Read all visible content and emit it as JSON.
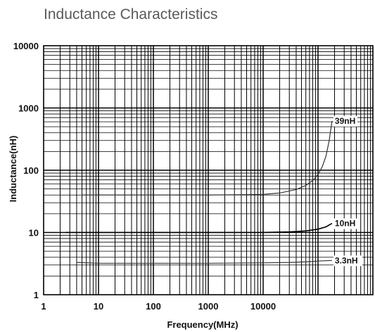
{
  "chart_data": {
    "type": "line",
    "title": "Inductance Characteristics",
    "xlabel": "Frequency(MHz)",
    "ylabel": "Inductance(nH)",
    "x_scale": "log",
    "y_scale": "log",
    "xlim": [
      1,
      1000000
    ],
    "ylim": [
      1,
      10000
    ],
    "x_ticks": [
      "1",
      "10",
      "100",
      "1000",
      "10000"
    ],
    "y_ticks": [
      "1",
      "10",
      "100",
      "1000",
      "10000"
    ],
    "grid": true,
    "series": [
      {
        "name": "39nH",
        "color": "#333333",
        "x": [
          5,
          20,
          100,
          1000,
          5000,
          10000,
          20000,
          40000,
          60000,
          80000,
          100000,
          120000,
          140000,
          160000,
          180000
        ],
        "y": [
          40,
          40,
          40,
          40,
          40.5,
          41,
          43,
          49,
          57,
          68,
          85,
          115,
          170,
          300,
          620
        ]
      },
      {
        "name": "10nH",
        "color": "#000000",
        "x": [
          2.5,
          10,
          100,
          1000,
          5500,
          10000,
          30000,
          60000,
          100000,
          140000,
          180000
        ],
        "y": [
          10,
          10,
          10,
          10,
          10,
          10,
          10.2,
          10.6,
          11.3,
          12.3,
          14
        ]
      },
      {
        "name": "3.3nH",
        "color": "#333333",
        "x": [
          4,
          10,
          100,
          1000,
          10000,
          30000,
          70000,
          120000,
          180000
        ],
        "y": [
          3.3,
          3.2,
          3.2,
          3.2,
          3.25,
          3.3,
          3.4,
          3.5,
          3.55
        ]
      }
    ]
  }
}
